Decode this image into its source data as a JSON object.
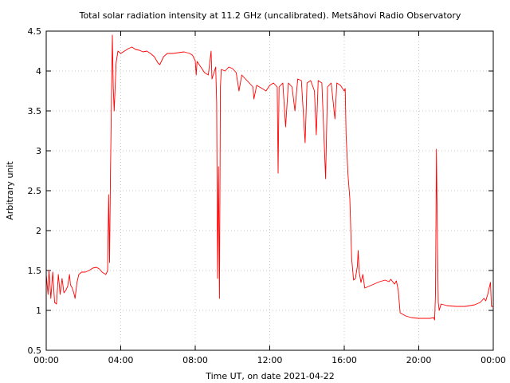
{
  "chart_data": {
    "type": "line",
    "title": "Total solar radiation intensity at 11.2 GHz (uncalibrated). Metsähovi Radio Observatory",
    "xlabel": "Time UT, on date 2021-04-22",
    "ylabel": "Arbitrary unit",
    "x_unit": "hours",
    "xlim": [
      0,
      24
    ],
    "ylim": [
      0.5,
      4.5
    ],
    "grid": true,
    "line_color": "#ff0000",
    "x_ticks": [
      {
        "value": 0,
        "label": "00:00"
      },
      {
        "value": 4,
        "label": "04:00"
      },
      {
        "value": 8,
        "label": "08:00"
      },
      {
        "value": 12,
        "label": "12:00"
      },
      {
        "value": 16,
        "label": "16:00"
      },
      {
        "value": 20,
        "label": "20:00"
      },
      {
        "value": 24,
        "label": "00:00"
      }
    ],
    "y_ticks": [
      {
        "value": 0.5,
        "label": "0.5"
      },
      {
        "value": 1.0,
        "label": "1"
      },
      {
        "value": 1.5,
        "label": "1.5"
      },
      {
        "value": 2.0,
        "label": "2"
      },
      {
        "value": 2.5,
        "label": "2.5"
      },
      {
        "value": 3.0,
        "label": "3"
      },
      {
        "value": 3.5,
        "label": "3.5"
      },
      {
        "value": 4.0,
        "label": "4"
      },
      {
        "value": 4.5,
        "label": "4.5"
      }
    ],
    "series": [
      {
        "values": [
          [
            0.0,
            1.45
          ],
          [
            0.1,
            1.2
          ],
          [
            0.15,
            1.5
          ],
          [
            0.25,
            1.15
          ],
          [
            0.35,
            1.48
          ],
          [
            0.45,
            1.1
          ],
          [
            0.55,
            1.08
          ],
          [
            0.65,
            1.45
          ],
          [
            0.75,
            1.2
          ],
          [
            0.85,
            1.4
          ],
          [
            0.95,
            1.22
          ],
          [
            1.05,
            1.25
          ],
          [
            1.15,
            1.3
          ],
          [
            1.25,
            1.45
          ],
          [
            1.3,
            1.32
          ],
          [
            1.4,
            1.28
          ],
          [
            1.5,
            1.2
          ],
          [
            1.55,
            1.15
          ],
          [
            1.65,
            1.35
          ],
          [
            1.75,
            1.45
          ],
          [
            1.9,
            1.48
          ],
          [
            2.1,
            1.48
          ],
          [
            2.3,
            1.5
          ],
          [
            2.5,
            1.53
          ],
          [
            2.7,
            1.54
          ],
          [
            2.85,
            1.52
          ],
          [
            3.0,
            1.48
          ],
          [
            3.2,
            1.45
          ],
          [
            3.3,
            1.5
          ],
          [
            3.35,
            2.45
          ],
          [
            3.4,
            1.6
          ],
          [
            3.45,
            2.7
          ],
          [
            3.55,
            4.45
          ],
          [
            3.6,
            3.8
          ],
          [
            3.65,
            3.5
          ],
          [
            3.75,
            4.1
          ],
          [
            3.85,
            4.25
          ],
          [
            4.0,
            4.22
          ],
          [
            4.2,
            4.25
          ],
          [
            4.4,
            4.28
          ],
          [
            4.6,
            4.3
          ],
          [
            4.8,
            4.27
          ],
          [
            5.0,
            4.26
          ],
          [
            5.2,
            4.24
          ],
          [
            5.4,
            4.25
          ],
          [
            5.6,
            4.22
          ],
          [
            5.8,
            4.18
          ],
          [
            6.0,
            4.1
          ],
          [
            6.1,
            4.08
          ],
          [
            6.3,
            4.18
          ],
          [
            6.5,
            4.22
          ],
          [
            6.8,
            4.22
          ],
          [
            7.1,
            4.23
          ],
          [
            7.4,
            4.24
          ],
          [
            7.7,
            4.22
          ],
          [
            7.85,
            4.2
          ],
          [
            8.0,
            4.13
          ],
          [
            8.05,
            3.95
          ],
          [
            8.1,
            4.12
          ],
          [
            8.3,
            4.05
          ],
          [
            8.5,
            3.98
          ],
          [
            8.7,
            3.95
          ],
          [
            8.85,
            4.25
          ],
          [
            8.9,
            3.9
          ],
          [
            9.1,
            4.05
          ],
          [
            9.15,
            3.6
          ],
          [
            9.2,
            1.4
          ],
          [
            9.25,
            2.8
          ],
          [
            9.3,
            1.15
          ],
          [
            9.35,
            3.8
          ],
          [
            9.4,
            4.02
          ],
          [
            9.6,
            4.0
          ],
          [
            9.8,
            4.05
          ],
          [
            10.0,
            4.03
          ],
          [
            10.2,
            3.98
          ],
          [
            10.35,
            3.75
          ],
          [
            10.5,
            3.95
          ],
          [
            10.7,
            3.9
          ],
          [
            10.9,
            3.85
          ],
          [
            11.1,
            3.8
          ],
          [
            11.15,
            3.65
          ],
          [
            11.3,
            3.82
          ],
          [
            11.6,
            3.78
          ],
          [
            11.8,
            3.75
          ],
          [
            12.0,
            3.82
          ],
          [
            12.2,
            3.85
          ],
          [
            12.4,
            3.8
          ],
          [
            12.45,
            2.72
          ],
          [
            12.5,
            3.8
          ],
          [
            12.7,
            3.85
          ],
          [
            12.85,
            3.3
          ],
          [
            13.0,
            3.85
          ],
          [
            13.2,
            3.8
          ],
          [
            13.35,
            3.5
          ],
          [
            13.5,
            3.9
          ],
          [
            13.7,
            3.88
          ],
          [
            13.9,
            3.1
          ],
          [
            14.0,
            3.85
          ],
          [
            14.2,
            3.88
          ],
          [
            14.4,
            3.75
          ],
          [
            14.5,
            3.2
          ],
          [
            14.6,
            3.88
          ],
          [
            14.8,
            3.85
          ],
          [
            15.0,
            2.65
          ],
          [
            15.1,
            3.8
          ],
          [
            15.3,
            3.85
          ],
          [
            15.5,
            3.4
          ],
          [
            15.6,
            3.85
          ],
          [
            15.8,
            3.82
          ],
          [
            16.0,
            3.75
          ],
          [
            16.05,
            3.78
          ],
          [
            16.1,
            3.2
          ],
          [
            16.2,
            2.7
          ],
          [
            16.3,
            2.4
          ],
          [
            16.4,
            1.65
          ],
          [
            16.5,
            1.38
          ],
          [
            16.6,
            1.4
          ],
          [
            16.7,
            1.55
          ],
          [
            16.75,
            1.75
          ],
          [
            16.8,
            1.48
          ],
          [
            16.9,
            1.35
          ],
          [
            17.0,
            1.45
          ],
          [
            17.1,
            1.28
          ],
          [
            17.3,
            1.3
          ],
          [
            17.6,
            1.33
          ],
          [
            17.9,
            1.36
          ],
          [
            18.2,
            1.38
          ],
          [
            18.4,
            1.36
          ],
          [
            18.5,
            1.39
          ],
          [
            18.7,
            1.33
          ],
          [
            18.8,
            1.37
          ],
          [
            18.9,
            1.25
          ],
          [
            19.0,
            0.97
          ],
          [
            19.3,
            0.93
          ],
          [
            19.6,
            0.91
          ],
          [
            20.0,
            0.9
          ],
          [
            20.3,
            0.9
          ],
          [
            20.6,
            0.9
          ],
          [
            20.8,
            0.91
          ],
          [
            20.85,
            0.88
          ],
          [
            20.9,
            1.2
          ],
          [
            20.95,
            3.02
          ],
          [
            21.0,
            1.9
          ],
          [
            21.05,
            1.1
          ],
          [
            21.1,
            1.0
          ],
          [
            21.2,
            1.08
          ],
          [
            21.5,
            1.06
          ],
          [
            22.0,
            1.05
          ],
          [
            22.5,
            1.05
          ],
          [
            23.0,
            1.07
          ],
          [
            23.3,
            1.1
          ],
          [
            23.5,
            1.15
          ],
          [
            23.6,
            1.12
          ],
          [
            23.7,
            1.2
          ],
          [
            23.85,
            1.35
          ],
          [
            23.9,
            1.05
          ],
          [
            24.0,
            1.05
          ]
        ]
      }
    ]
  }
}
